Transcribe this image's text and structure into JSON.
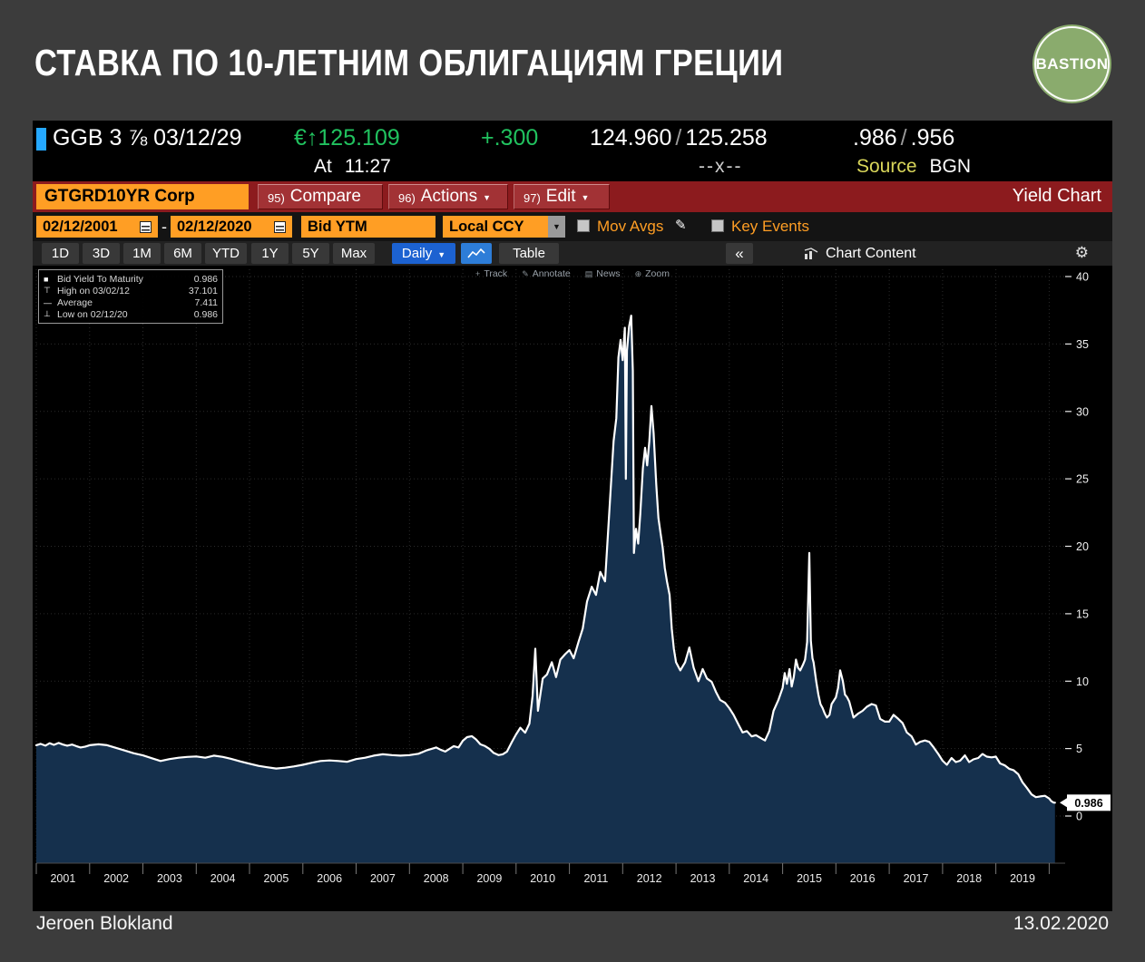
{
  "colors": {
    "amber": "#ff9e24",
    "maroon": "#8c1b1e",
    "maroon_btn": "#a23235",
    "blue": "#1c62d1",
    "icon_blue": "#2d7dd8",
    "green": "#21c25f",
    "yellow": "#d9d65a",
    "cyan": "#25a8ff",
    "chart_fill": "#15304d",
    "chart_line": "#ffffff",
    "logo_green": "#8aab6d"
  },
  "page": {
    "title": "СТАВКА ПО 10-ЛЕТНИМ ОБЛИГАЦИЯМ ГРЕЦИИ",
    "logo_text": "BASTION",
    "footer_left": "Jeroen Blokland",
    "footer_right": "13.02.2020"
  },
  "security": {
    "ticker": "GGB 3 ⅞ 03/12/29",
    "price": "€↑125.109",
    "change": "+.300",
    "bid": "124.960",
    "ask": "125.258",
    "separator": "/",
    "yield_bid": ".986",
    "yield_ask": ".956",
    "at_label": "At",
    "time": "11:27",
    "x_indicator": "--x--",
    "source_label": "Source",
    "source_value": "BGN"
  },
  "function_bar": {
    "ticker_field": "GTGRD10YR Corp",
    "buttons": [
      {
        "num": "95)",
        "label": "Compare",
        "arrow": ""
      },
      {
        "num": "96)",
        "label": "Actions",
        "arrow": "▼"
      },
      {
        "num": "97)",
        "label": "Edit",
        "arrow": "▼"
      }
    ],
    "right_label": "Yield Chart"
  },
  "settings": {
    "date_from": "02/12/2001",
    "dash": "-",
    "date_to": "02/12/2020",
    "field": "Bid YTM",
    "currency": "Local CCY",
    "dropdown_arrow": "▼",
    "mov_avgs": "Mov Avgs",
    "pencil_icon": "✎",
    "key_events": "Key Events"
  },
  "toolbar": {
    "period_tabs": [
      "1D",
      "3D",
      "1M",
      "6M",
      "YTD",
      "1Y",
      "5Y",
      "Max"
    ],
    "frequency": "Daily",
    "frequency_arrow": "▼",
    "table": "Table",
    "collapse": "«",
    "chart_content": "Chart Content",
    "gear_icon": "⚙"
  },
  "mini_toolbar": [
    {
      "icon": "+",
      "label": "Track"
    },
    {
      "icon": "✎",
      "label": "Annotate"
    },
    {
      "icon": "▤",
      "label": "News"
    },
    {
      "icon": "⊕",
      "label": "Zoom"
    }
  ],
  "legend": {
    "rows": [
      {
        "marker": "■",
        "label": "Bid Yield To Maturity",
        "value": "0.986"
      },
      {
        "marker": "⊤",
        "label": "High on 03/02/12",
        "value": "37.101"
      },
      {
        "marker": "—",
        "label": "Average",
        "value": "7.411"
      },
      {
        "marker": "⊥",
        "label": "Low on 02/12/20",
        "value": "0.986"
      }
    ]
  },
  "chart_data": {
    "type": "area",
    "title": "Bid Yield To Maturity",
    "xlabel": "",
    "ylabel": "",
    "x_domain": [
      2001,
      2020.3
    ],
    "y_ticks": [
      0,
      5,
      10,
      15,
      20,
      25,
      30,
      35,
      40
    ],
    "x_tick_years": [
      2001,
      2002,
      2003,
      2004,
      2005,
      2006,
      2007,
      2008,
      2009,
      2010,
      2011,
      2012,
      2013,
      2014,
      2015,
      2016,
      2017,
      2018,
      2019
    ],
    "grid": true,
    "legend_position": "top-left",
    "last_value": 0.986,
    "last_label": "0.986",
    "high": {
      "date": "03/02/12",
      "value": 37.101
    },
    "average": 7.411,
    "low": {
      "date": "02/12/20",
      "value": 0.986
    },
    "series": [
      {
        "name": "Bid Yield To Maturity",
        "points": [
          [
            2001.0,
            5.25
          ],
          [
            2001.08,
            5.35
          ],
          [
            2001.17,
            5.22
          ],
          [
            2001.25,
            5.4
          ],
          [
            2001.33,
            5.28
          ],
          [
            2001.42,
            5.42
          ],
          [
            2001.5,
            5.3
          ],
          [
            2001.58,
            5.22
          ],
          [
            2001.67,
            5.3
          ],
          [
            2001.75,
            5.18
          ],
          [
            2001.83,
            5.08
          ],
          [
            2001.92,
            5.15
          ],
          [
            2002.0,
            5.25
          ],
          [
            2002.17,
            5.32
          ],
          [
            2002.33,
            5.25
          ],
          [
            2002.5,
            5.05
          ],
          [
            2002.67,
            4.85
          ],
          [
            2002.83,
            4.65
          ],
          [
            2003.0,
            4.5
          ],
          [
            2003.17,
            4.28
          ],
          [
            2003.33,
            4.08
          ],
          [
            2003.5,
            4.22
          ],
          [
            2003.67,
            4.32
          ],
          [
            2003.83,
            4.38
          ],
          [
            2004.0,
            4.42
          ],
          [
            2004.17,
            4.32
          ],
          [
            2004.33,
            4.48
          ],
          [
            2004.5,
            4.38
          ],
          [
            2004.67,
            4.22
          ],
          [
            2004.83,
            4.05
          ],
          [
            2005.0,
            3.88
          ],
          [
            2005.17,
            3.72
          ],
          [
            2005.33,
            3.62
          ],
          [
            2005.5,
            3.52
          ],
          [
            2005.67,
            3.58
          ],
          [
            2005.83,
            3.68
          ],
          [
            2006.0,
            3.8
          ],
          [
            2006.17,
            3.95
          ],
          [
            2006.33,
            4.08
          ],
          [
            2006.5,
            4.12
          ],
          [
            2006.67,
            4.08
          ],
          [
            2006.83,
            4.02
          ],
          [
            2007.0,
            4.22
          ],
          [
            2007.17,
            4.32
          ],
          [
            2007.33,
            4.48
          ],
          [
            2007.5,
            4.58
          ],
          [
            2007.67,
            4.52
          ],
          [
            2007.83,
            4.48
          ],
          [
            2008.0,
            4.52
          ],
          [
            2008.17,
            4.62
          ],
          [
            2008.33,
            4.88
          ],
          [
            2008.5,
            5.08
          ],
          [
            2008.58,
            4.92
          ],
          [
            2008.67,
            4.78
          ],
          [
            2008.75,
            4.98
          ],
          [
            2008.83,
            5.18
          ],
          [
            2008.92,
            5.08
          ],
          [
            2009.0,
            5.58
          ],
          [
            2009.08,
            5.85
          ],
          [
            2009.17,
            5.92
          ],
          [
            2009.25,
            5.68
          ],
          [
            2009.33,
            5.32
          ],
          [
            2009.42,
            5.18
          ],
          [
            2009.5,
            4.98
          ],
          [
            2009.58,
            4.68
          ],
          [
            2009.67,
            4.52
          ],
          [
            2009.75,
            4.58
          ],
          [
            2009.83,
            4.78
          ],
          [
            2009.92,
            5.48
          ],
          [
            2010.0,
            6.05
          ],
          [
            2010.08,
            6.55
          ],
          [
            2010.17,
            6.18
          ],
          [
            2010.25,
            6.85
          ],
          [
            2010.31,
            8.9
          ],
          [
            2010.36,
            12.4
          ],
          [
            2010.41,
            7.8
          ],
          [
            2010.5,
            10.2
          ],
          [
            2010.58,
            10.5
          ],
          [
            2010.67,
            11.4
          ],
          [
            2010.75,
            10.3
          ],
          [
            2010.83,
            11.6
          ],
          [
            2010.92,
            12.0
          ],
          [
            2011.0,
            12.3
          ],
          [
            2011.08,
            11.7
          ],
          [
            2011.17,
            12.9
          ],
          [
            2011.25,
            13.9
          ],
          [
            2011.33,
            15.9
          ],
          [
            2011.42,
            17.0
          ],
          [
            2011.5,
            16.4
          ],
          [
            2011.58,
            18.1
          ],
          [
            2011.67,
            17.4
          ],
          [
            2011.75,
            22.6
          ],
          [
            2011.83,
            27.8
          ],
          [
            2011.88,
            29.5
          ],
          [
            2011.92,
            34.0
          ],
          [
            2011.96,
            35.3
          ],
          [
            2012.0,
            33.8
          ],
          [
            2012.04,
            36.2
          ],
          [
            2012.06,
            25.0
          ],
          [
            2012.08,
            34.5
          ],
          [
            2012.12,
            36.3
          ],
          [
            2012.16,
            37.101
          ],
          [
            2012.19,
            33.0
          ],
          [
            2012.21,
            19.5
          ],
          [
            2012.25,
            21.3
          ],
          [
            2012.29,
            20.2
          ],
          [
            2012.33,
            22.4
          ],
          [
            2012.38,
            25.8
          ],
          [
            2012.42,
            27.3
          ],
          [
            2012.46,
            26.0
          ],
          [
            2012.5,
            27.8
          ],
          [
            2012.54,
            30.4
          ],
          [
            2012.58,
            28.4
          ],
          [
            2012.63,
            24.6
          ],
          [
            2012.67,
            22.1
          ],
          [
            2012.71,
            21.0
          ],
          [
            2012.75,
            19.9
          ],
          [
            2012.79,
            18.4
          ],
          [
            2012.83,
            17.4
          ],
          [
            2012.88,
            16.4
          ],
          [
            2012.92,
            13.9
          ],
          [
            2012.96,
            12.4
          ],
          [
            2013.0,
            11.4
          ],
          [
            2013.08,
            10.8
          ],
          [
            2013.17,
            11.4
          ],
          [
            2013.25,
            12.5
          ],
          [
            2013.33,
            11.0
          ],
          [
            2013.42,
            10.0
          ],
          [
            2013.5,
            10.9
          ],
          [
            2013.58,
            10.2
          ],
          [
            2013.67,
            9.95
          ],
          [
            2013.75,
            9.2
          ],
          [
            2013.83,
            8.6
          ],
          [
            2013.92,
            8.4
          ],
          [
            2014.0,
            8.0
          ],
          [
            2014.08,
            7.5
          ],
          [
            2014.17,
            6.8
          ],
          [
            2014.25,
            6.2
          ],
          [
            2014.33,
            6.3
          ],
          [
            2014.42,
            5.9
          ],
          [
            2014.5,
            6.0
          ],
          [
            2014.58,
            5.8
          ],
          [
            2014.67,
            5.6
          ],
          [
            2014.75,
            6.3
          ],
          [
            2014.83,
            7.8
          ],
          [
            2014.92,
            8.6
          ],
          [
            2015.0,
            9.5
          ],
          [
            2015.04,
            10.6
          ],
          [
            2015.08,
            9.8
          ],
          [
            2015.13,
            10.9
          ],
          [
            2015.17,
            9.6
          ],
          [
            2015.21,
            10.3
          ],
          [
            2015.25,
            11.6
          ],
          [
            2015.29,
            11.0
          ],
          [
            2015.33,
            10.8
          ],
          [
            2015.38,
            11.2
          ],
          [
            2015.42,
            11.6
          ],
          [
            2015.46,
            12.9
          ],
          [
            2015.5,
            19.5
          ],
          [
            2015.53,
            13.0
          ],
          [
            2015.56,
            11.7
          ],
          [
            2015.58,
            11.4
          ],
          [
            2015.63,
            10.0
          ],
          [
            2015.67,
            9.0
          ],
          [
            2015.71,
            8.3
          ],
          [
            2015.75,
            8.0
          ],
          [
            2015.79,
            7.6
          ],
          [
            2015.83,
            7.3
          ],
          [
            2015.88,
            7.5
          ],
          [
            2015.92,
            8.3
          ],
          [
            2016.0,
            8.8
          ],
          [
            2016.04,
            9.5
          ],
          [
            2016.08,
            10.8
          ],
          [
            2016.13,
            10.0
          ],
          [
            2016.17,
            9.0
          ],
          [
            2016.21,
            8.8
          ],
          [
            2016.25,
            8.5
          ],
          [
            2016.33,
            7.3
          ],
          [
            2016.42,
            7.6
          ],
          [
            2016.5,
            7.8
          ],
          [
            2016.58,
            8.1
          ],
          [
            2016.67,
            8.3
          ],
          [
            2016.75,
            8.2
          ],
          [
            2016.83,
            7.2
          ],
          [
            2016.92,
            7.0
          ],
          [
            2017.0,
            7.0
          ],
          [
            2017.08,
            7.5
          ],
          [
            2017.17,
            7.2
          ],
          [
            2017.25,
            6.9
          ],
          [
            2017.33,
            6.2
          ],
          [
            2017.42,
            5.9
          ],
          [
            2017.5,
            5.3
          ],
          [
            2017.58,
            5.5
          ],
          [
            2017.67,
            5.6
          ],
          [
            2017.75,
            5.5
          ],
          [
            2017.83,
            5.1
          ],
          [
            2017.92,
            4.6
          ],
          [
            2018.0,
            4.1
          ],
          [
            2018.08,
            3.8
          ],
          [
            2018.17,
            4.3
          ],
          [
            2018.25,
            4.0
          ],
          [
            2018.33,
            4.1
          ],
          [
            2018.42,
            4.5
          ],
          [
            2018.5,
            4.0
          ],
          [
            2018.58,
            4.2
          ],
          [
            2018.67,
            4.3
          ],
          [
            2018.75,
            4.6
          ],
          [
            2018.83,
            4.4
          ],
          [
            2018.92,
            4.35
          ],
          [
            2019.0,
            4.4
          ],
          [
            2019.08,
            3.9
          ],
          [
            2019.17,
            3.75
          ],
          [
            2019.25,
            3.5
          ],
          [
            2019.33,
            3.4
          ],
          [
            2019.42,
            3.1
          ],
          [
            2019.5,
            2.5
          ],
          [
            2019.58,
            2.1
          ],
          [
            2019.67,
            1.6
          ],
          [
            2019.75,
            1.4
          ],
          [
            2019.83,
            1.45
          ],
          [
            2019.92,
            1.5
          ],
          [
            2020.0,
            1.3
          ],
          [
            2020.04,
            1.1
          ],
          [
            2020.08,
            1.0
          ],
          [
            2020.11,
            0.986
          ]
        ]
      }
    ]
  }
}
